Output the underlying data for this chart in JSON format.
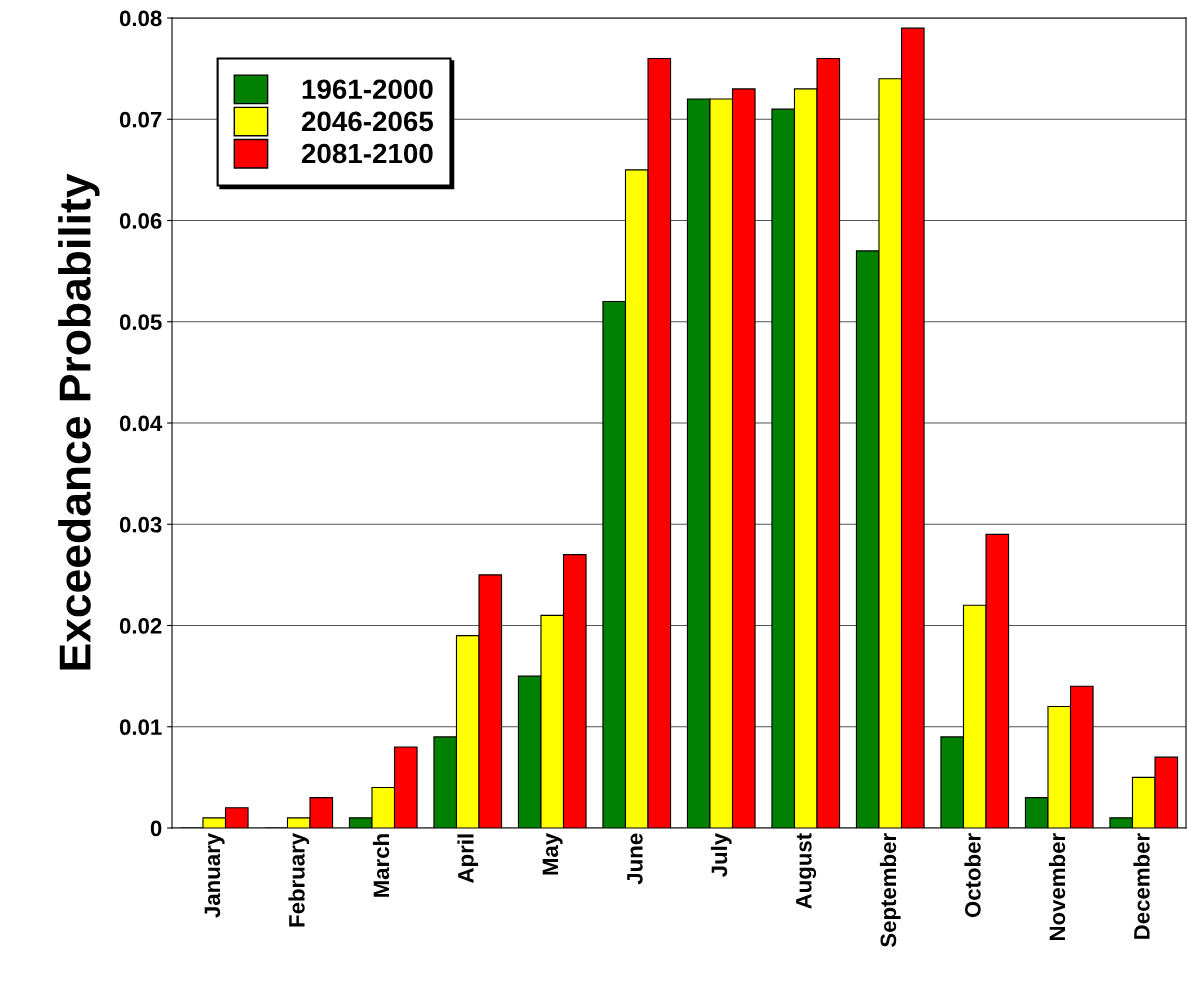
{
  "chart_data": {
    "type": "bar",
    "ylabel": "Exceedance Probability",
    "categories": [
      "January",
      "February",
      "March",
      "April",
      "May",
      "June",
      "July",
      "August",
      "September",
      "October",
      "November",
      "December"
    ],
    "series": [
      {
        "name": "1961-2000",
        "color": "#008000",
        "values": [
          0,
          0,
          0.001,
          0.009,
          0.015,
          0.052,
          0.072,
          0.071,
          0.057,
          0.009,
          0.003,
          0.001
        ]
      },
      {
        "name": "2046-2065",
        "color": "#ffff00",
        "values": [
          0.001,
          0.001,
          0.004,
          0.019,
          0.021,
          0.065,
          0.072,
          0.073,
          0.074,
          0.022,
          0.012,
          0.005
        ]
      },
      {
        "name": "2081-2100",
        "color": "#ff0000",
        "values": [
          0.002,
          0.003,
          0.008,
          0.025,
          0.027,
          0.076,
          0.073,
          0.076,
          0.079,
          0.029,
          0.014,
          0.007
        ]
      }
    ],
    "ylim": [
      0,
      0.08
    ],
    "yticks": [
      0,
      0.01,
      0.02,
      0.03,
      0.04,
      0.05,
      0.06,
      0.07,
      0.08
    ],
    "grid": "y",
    "legend": "top left"
  }
}
